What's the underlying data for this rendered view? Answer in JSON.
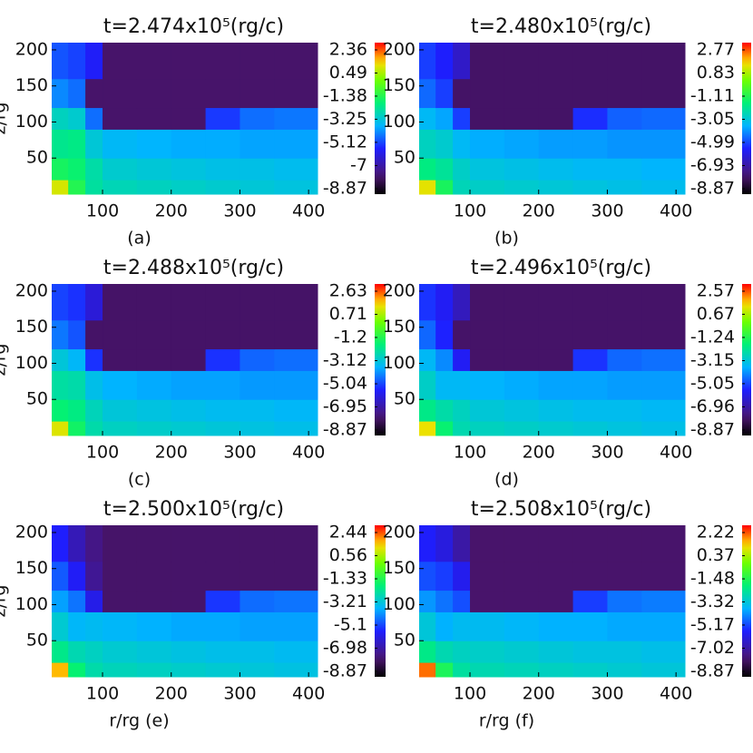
{
  "chart_data": [
    {
      "type": "heatmap",
      "title": "t=2.474x10⁵(rg/c)",
      "xlabel": "(a)",
      "ylabel": "z/rg",
      "colormap": "rainbow",
      "xlim": [
        26,
        413
      ],
      "ylim": [
        0,
        210
      ],
      "xticks": [
        100,
        200,
        300,
        400
      ],
      "yticks": [
        50,
        100,
        150,
        200
      ],
      "x_edges": [
        26,
        50,
        75,
        100,
        150,
        200,
        250,
        300,
        350,
        413
      ],
      "y_edges": [
        0,
        20,
        50,
        90,
        120,
        160,
        210
      ],
      "z": [
        [
          0.5,
          -1.6,
          -2.6,
          -2.9,
          -3.0,
          -3.1,
          -3.2,
          -3.3,
          -3.4
        ],
        [
          -1.8,
          -2.0,
          -2.7,
          -3.2,
          -3.3,
          -3.4,
          -3.5,
          -3.5,
          -3.6
        ],
        [
          -2.4,
          -2.3,
          -3.3,
          -3.7,
          -3.8,
          -3.9,
          -3.9,
          -4.0,
          -4.0
        ],
        [
          -3.0,
          -3.2,
          -4.6,
          -7.6,
          -7.6,
          -7.6,
          -5.2,
          -4.6,
          -4.5
        ],
        [
          -4.3,
          -4.6,
          -7.6,
          -7.6,
          -7.6,
          -7.6,
          -7.6,
          -7.6,
          -7.6
        ],
        [
          -4.9,
          -5.1,
          -5.6,
          -7.6,
          -7.6,
          -7.6,
          -7.6,
          -7.6,
          -7.6
        ]
      ],
      "zlim": [
        -8.87,
        2.36
      ],
      "zticks": [
        2.36,
        0.49,
        -1.38,
        -3.25,
        -5.12,
        -7.0,
        -8.87
      ]
    },
    {
      "type": "heatmap",
      "title": "t=2.480x10⁵(rg/c)",
      "xlabel": "(b)",
      "colormap": "rainbow",
      "xlim": [
        26,
        413
      ],
      "ylim": [
        0,
        210
      ],
      "xticks": [
        100,
        200,
        300,
        400
      ],
      "yticks": [
        50,
        100,
        150,
        200
      ],
      "x_edges": [
        26,
        50,
        75,
        100,
        150,
        200,
        250,
        300,
        350,
        413
      ],
      "y_edges": [
        0,
        20,
        50,
        90,
        120,
        160,
        210
      ],
      "z": [
        [
          1.0,
          -1.5,
          -2.7,
          -2.9,
          -3.0,
          -3.1,
          -3.2,
          -3.3,
          -3.4
        ],
        [
          -2.0,
          -2.3,
          -2.9,
          -3.2,
          -3.3,
          -3.4,
          -3.5,
          -3.5,
          -3.6
        ],
        [
          -2.8,
          -3.0,
          -3.5,
          -3.7,
          -3.8,
          -3.9,
          -3.9,
          -4.0,
          -4.0
        ],
        [
          -3.5,
          -3.8,
          -5.0,
          -7.6,
          -7.6,
          -7.6,
          -5.2,
          -4.6,
          -4.5
        ],
        [
          -4.5,
          -5.0,
          -7.6,
          -7.6,
          -7.6,
          -7.6,
          -7.6,
          -7.6,
          -7.6
        ],
        [
          -5.0,
          -5.4,
          -6.2,
          -7.6,
          -7.6,
          -7.6,
          -7.6,
          -7.6,
          -7.6
        ]
      ],
      "zlim": [
        -8.87,
        2.77
      ],
      "zticks": [
        2.77,
        0.83,
        -1.11,
        -3.05,
        -4.99,
        -6.93,
        -8.87
      ]
    },
    {
      "type": "heatmap",
      "title": "t=2.488x10⁵(rg/c)",
      "xlabel": "(c)",
      "ylabel": "z/rg",
      "colormap": "rainbow",
      "xlim": [
        26,
        413
      ],
      "ylim": [
        0,
        210
      ],
      "xticks": [
        100,
        200,
        300,
        400
      ],
      "yticks": [
        50,
        100,
        150,
        200
      ],
      "x_edges": [
        26,
        50,
        75,
        100,
        150,
        200,
        250,
        300,
        350,
        413
      ],
      "y_edges": [
        0,
        20,
        50,
        90,
        120,
        160,
        210
      ],
      "z": [
        [
          0.8,
          -1.7,
          -2.6,
          -2.9,
          -3.0,
          -3.1,
          -3.2,
          -3.3,
          -3.4
        ],
        [
          -1.9,
          -2.1,
          -2.8,
          -3.2,
          -3.3,
          -3.4,
          -3.5,
          -3.5,
          -3.6
        ],
        [
          -2.5,
          -2.6,
          -3.4,
          -3.7,
          -3.8,
          -3.9,
          -3.9,
          -4.0,
          -4.0
        ],
        [
          -3.2,
          -3.6,
          -5.2,
          -7.6,
          -7.6,
          -7.6,
          -5.2,
          -4.6,
          -4.5
        ],
        [
          -4.4,
          -4.8,
          -7.6,
          -7.6,
          -7.6,
          -7.6,
          -7.6,
          -7.6,
          -7.6
        ],
        [
          -5.0,
          -5.2,
          -6.0,
          -7.6,
          -7.6,
          -7.6,
          -7.6,
          -7.6,
          -7.6
        ]
      ],
      "zlim": [
        -8.87,
        2.63
      ],
      "zticks": [
        2.63,
        0.71,
        -1.2,
        -3.12,
        -5.04,
        -6.95,
        -8.87
      ]
    },
    {
      "type": "heatmap",
      "title": "t=2.496x10⁵(rg/c)",
      "xlabel": "(d)",
      "colormap": "rainbow",
      "xlim": [
        26,
        413
      ],
      "ylim": [
        0,
        210
      ],
      "xticks": [
        100,
        200,
        300,
        400
      ],
      "yticks": [
        50,
        100,
        150,
        200
      ],
      "x_edges": [
        26,
        50,
        75,
        100,
        150,
        200,
        250,
        300,
        350,
        413
      ],
      "y_edges": [
        0,
        20,
        50,
        90,
        120,
        160,
        210
      ],
      "z": [
        [
          0.9,
          -1.9,
          -2.7,
          -2.9,
          -3.0,
          -3.1,
          -3.2,
          -3.3,
          -3.4
        ],
        [
          -2.2,
          -2.6,
          -2.9,
          -3.2,
          -3.3,
          -3.4,
          -3.5,
          -3.5,
          -3.6
        ],
        [
          -3.0,
          -3.6,
          -3.6,
          -3.7,
          -3.8,
          -3.9,
          -3.9,
          -4.0,
          -4.0
        ],
        [
          -3.6,
          -4.2,
          -5.6,
          -7.6,
          -7.6,
          -7.6,
          -5.2,
          -4.6,
          -4.5
        ],
        [
          -4.6,
          -5.4,
          -7.6,
          -7.6,
          -7.6,
          -7.6,
          -7.6,
          -7.6,
          -7.6
        ],
        [
          -5.2,
          -5.6,
          -6.4,
          -7.6,
          -7.6,
          -7.6,
          -7.6,
          -7.6,
          -7.6
        ]
      ],
      "zlim": [
        -8.87,
        2.57
      ],
      "zticks": [
        2.57,
        0.67,
        -1.24,
        -3.15,
        -5.05,
        -6.96,
        -8.87
      ]
    },
    {
      "type": "heatmap",
      "title": "t=2.500x10⁵(rg/c)",
      "xlabel": "r/rg  (e)",
      "ylabel": "z/rg",
      "colormap": "rainbow",
      "xlim": [
        26,
        413
      ],
      "ylim": [
        0,
        210
      ],
      "xticks": [
        100,
        200,
        300,
        400
      ],
      "yticks": [
        50,
        100,
        150,
        200
      ],
      "x_edges": [
        26,
        50,
        75,
        100,
        150,
        200,
        250,
        300,
        350,
        413
      ],
      "y_edges": [
        0,
        20,
        50,
        90,
        120,
        160,
        210
      ],
      "z": [
        [
          1.2,
          -2.0,
          -2.7,
          -2.9,
          -3.0,
          -3.1,
          -3.2,
          -3.3,
          -3.4
        ],
        [
          -2.3,
          -2.8,
          -3.0,
          -3.2,
          -3.3,
          -3.4,
          -3.5,
          -3.5,
          -3.6
        ],
        [
          -3.2,
          -3.7,
          -3.6,
          -3.7,
          -3.8,
          -3.9,
          -3.9,
          -4.0,
          -4.0
        ],
        [
          -4.0,
          -4.5,
          -5.8,
          -7.6,
          -7.6,
          -7.6,
          -5.2,
          -4.6,
          -4.5
        ],
        [
          -4.8,
          -5.6,
          -7.0,
          -7.6,
          -7.6,
          -7.6,
          -7.6,
          -7.6,
          -7.6
        ],
        [
          -5.5,
          -6.5,
          -7.2,
          -7.6,
          -7.6,
          -7.6,
          -7.6,
          -7.6,
          -7.6
        ]
      ],
      "zlim": [
        -8.87,
        2.44
      ],
      "zticks": [
        2.44,
        0.56,
        -1.33,
        -3.21,
        -5.1,
        -6.98,
        -8.87
      ]
    },
    {
      "type": "heatmap",
      "title": "t=2.508x10⁵(rg/c)",
      "xlabel": "r/rg  (f)",
      "colormap": "rainbow",
      "xlim": [
        26,
        413
      ],
      "ylim": [
        0,
        210
      ],
      "xticks": [
        100,
        200,
        300,
        400
      ],
      "yticks": [
        50,
        100,
        150,
        200
      ],
      "x_edges": [
        26,
        50,
        75,
        100,
        150,
        200,
        250,
        300,
        350,
        413
      ],
      "y_edges": [
        0,
        20,
        50,
        90,
        120,
        160,
        210
      ],
      "z": [
        [
          1.5,
          -1.8,
          -2.7,
          -2.9,
          -3.0,
          -3.1,
          -3.2,
          -3.3,
          -3.4
        ],
        [
          -2.4,
          -2.9,
          -3.1,
          -3.2,
          -3.3,
          -3.4,
          -3.5,
          -3.5,
          -3.6
        ],
        [
          -3.4,
          -3.9,
          -3.7,
          -3.7,
          -3.8,
          -3.9,
          -3.9,
          -4.0,
          -4.0
        ],
        [
          -4.2,
          -4.6,
          -5.0,
          -7.6,
          -7.6,
          -7.6,
          -5.2,
          -4.6,
          -4.5
        ],
        [
          -5.0,
          -5.2,
          -5.8,
          -7.6,
          -7.6,
          -7.6,
          -7.6,
          -7.6,
          -7.6
        ],
        [
          -5.6,
          -6.0,
          -6.8,
          -7.6,
          -7.6,
          -7.6,
          -7.6,
          -7.6,
          -7.6
        ]
      ],
      "zlim": [
        -8.87,
        2.22
      ],
      "zticks": [
        2.22,
        0.37,
        -1.48,
        -3.32,
        -5.17,
        -7.02,
        -8.87
      ]
    }
  ]
}
